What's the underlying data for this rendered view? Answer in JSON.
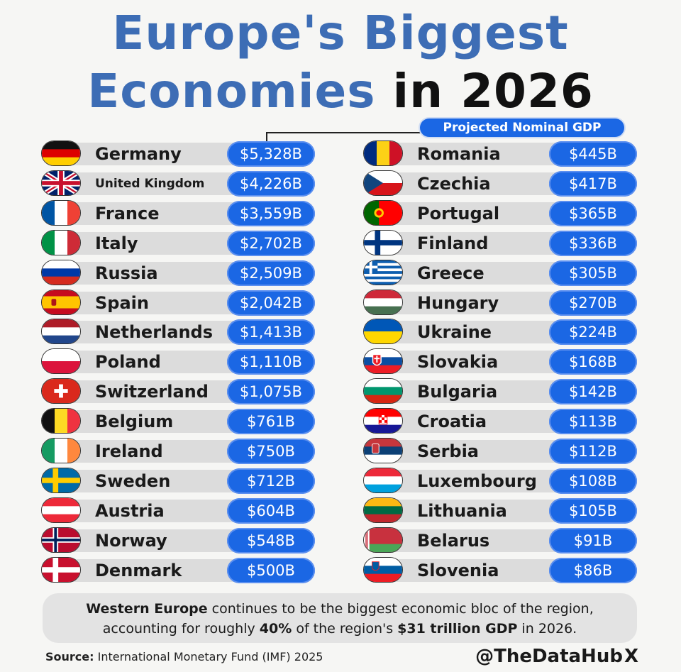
{
  "title": {
    "line1": "Europe's Biggest",
    "line2_blue": "Economies",
    "line2_dark": "in 2026"
  },
  "subtitle": "Projected Nominal GDP",
  "chart_data": {
    "type": "table",
    "title": "Europe's Biggest Economies in 2026",
    "subtitle": "Projected Nominal GDP",
    "unit": "$B",
    "rows": [
      {
        "country": "Germany",
        "value": 5328,
        "label": "$5,328B",
        "flag": "germany-flag"
      },
      {
        "country": "United Kingdom",
        "value": 4226,
        "label": "$4,226B",
        "flag": "uk-flag"
      },
      {
        "country": "France",
        "value": 3559,
        "label": "$3,559B",
        "flag": "france-flag"
      },
      {
        "country": "Italy",
        "value": 2702,
        "label": "$2,702B",
        "flag": "italy-flag"
      },
      {
        "country": "Russia",
        "value": 2509,
        "label": "$2,509B",
        "flag": "russia-flag"
      },
      {
        "country": "Spain",
        "value": 2042,
        "label": "$2,042B",
        "flag": "spain-flag"
      },
      {
        "country": "Netherlands",
        "value": 1413,
        "label": "$1,413B",
        "flag": "netherlands-flag"
      },
      {
        "country": "Poland",
        "value": 1110,
        "label": "$1,110B",
        "flag": "poland-flag"
      },
      {
        "country": "Switzerland",
        "value": 1075,
        "label": "$1,075B",
        "flag": "switzerland-flag"
      },
      {
        "country": "Belgium",
        "value": 761,
        "label": "$761B",
        "flag": "belgium-flag"
      },
      {
        "country": "Ireland",
        "value": 750,
        "label": "$750B",
        "flag": "ireland-flag"
      },
      {
        "country": "Sweden",
        "value": 712,
        "label": "$712B",
        "flag": "sweden-flag"
      },
      {
        "country": "Austria",
        "value": 604,
        "label": "$604B",
        "flag": "austria-flag"
      },
      {
        "country": "Norway",
        "value": 548,
        "label": "$548B",
        "flag": "norway-flag"
      },
      {
        "country": "Denmark",
        "value": 500,
        "label": "$500B",
        "flag": "denmark-flag"
      },
      {
        "country": "Romania",
        "value": 445,
        "label": "$445B",
        "flag": "romania-flag"
      },
      {
        "country": "Czechia",
        "value": 417,
        "label": "$417B",
        "flag": "czechia-flag"
      },
      {
        "country": "Portugal",
        "value": 365,
        "label": "$365B",
        "flag": "portugal-flag"
      },
      {
        "country": "Finland",
        "value": 336,
        "label": "$336B",
        "flag": "finland-flag"
      },
      {
        "country": "Greece",
        "value": 305,
        "label": "$305B",
        "flag": "greece-flag"
      },
      {
        "country": "Hungary",
        "value": 270,
        "label": "$270B",
        "flag": "hungary-flag"
      },
      {
        "country": "Ukraine",
        "value": 224,
        "label": "$224B",
        "flag": "ukraine-flag"
      },
      {
        "country": "Slovakia",
        "value": 168,
        "label": "$168B",
        "flag": "slovakia-flag"
      },
      {
        "country": "Bulgaria",
        "value": 142,
        "label": "$142B",
        "flag": "bulgaria-flag"
      },
      {
        "country": "Croatia",
        "value": 113,
        "label": "$113B",
        "flag": "croatia-flag"
      },
      {
        "country": "Serbia",
        "value": 112,
        "label": "$112B",
        "flag": "serbia-flag"
      },
      {
        "country": "Luxembourg",
        "value": 108,
        "label": "$108B",
        "flag": "luxembourg-flag"
      },
      {
        "country": "Lithuania",
        "value": 105,
        "label": "$105B",
        "flag": "lithuania-flag"
      },
      {
        "country": "Belarus",
        "value": 91,
        "label": "$91B",
        "flag": "belarus-flag"
      },
      {
        "country": "Slovenia",
        "value": 86,
        "label": "$86B",
        "flag": "slovenia-flag"
      }
    ]
  },
  "note": {
    "b1": "Western Europe",
    "t1": " continues to be the biggest economic bloc of the region,",
    "t2": "accounting for roughly ",
    "b2": "40%",
    "t3": " of the region's ",
    "b3": "$31 trillion GDP",
    "t4": " in 2026."
  },
  "source": {
    "label": "Source:",
    "text": " International Monetary Fund (IMF) 2025"
  },
  "handle": "@TheDataHub",
  "handle_logo": "X",
  "colors": {
    "title_blue": "#3d6db5",
    "pill_blue": "#1b67e4",
    "row_gray": "#dcdcdc"
  }
}
